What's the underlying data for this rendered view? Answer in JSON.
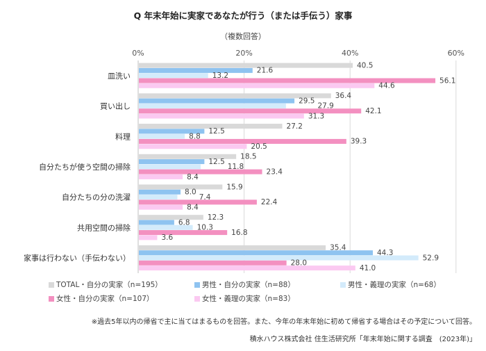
{
  "chart_data": {
    "type": "bar",
    "orientation": "horizontal",
    "title": "Q  年末年始に実家であなたが行う（または手伝う）家事",
    "subtitle": "（複数回答）",
    "xlim": [
      0,
      60
    ],
    "x_ticks": [
      "0%",
      "20%",
      "40%",
      "60%"
    ],
    "x_tick_values": [
      0,
      20,
      40,
      60
    ],
    "grid": true,
    "legend_position": "bottom",
    "categories": [
      "皿洗い",
      "買い出し",
      "料理",
      "自分たちが使う空間の掃除",
      "自分たちの分の洗濯",
      "共用空間の掃除",
      "家事は行わない（手伝わない）"
    ],
    "series": [
      {
        "name": "TOTAL・自分の実家（n=195）",
        "color": "#d9d9d9",
        "values": [
          40.5,
          36.4,
          27.2,
          18.5,
          15.9,
          12.3,
          35.4
        ]
      },
      {
        "name": "男性・自分の実家（n=88）",
        "color": "#8ec3f0",
        "values": [
          21.6,
          29.5,
          12.5,
          12.5,
          8.0,
          6.8,
          44.3
        ]
      },
      {
        "name": "男性・義理の実家（n=68）",
        "color": "#d3ebfb",
        "values": [
          13.2,
          27.9,
          8.8,
          11.8,
          7.4,
          10.3,
          52.9
        ]
      },
      {
        "name": "女性・自分の実家（n=107）",
        "color": "#f390c0",
        "values": [
          56.1,
          42.1,
          39.3,
          23.4,
          22.4,
          16.8,
          28.0
        ]
      },
      {
        "name": "女性・義理の実家（n=83）",
        "color": "#fbc9f1",
        "values": [
          44.6,
          31.3,
          20.5,
          8.4,
          8.4,
          3.6,
          41.0
        ]
      }
    ]
  },
  "note": "※過去5年以内の帰省で主に当てはまるものを回答。また、今年の年末年始に初めて帰省する場合はその予定について回答。",
  "source": "積水ハウス株式会社 住生活研究所「年末年始に関する調査　(2023年)」"
}
